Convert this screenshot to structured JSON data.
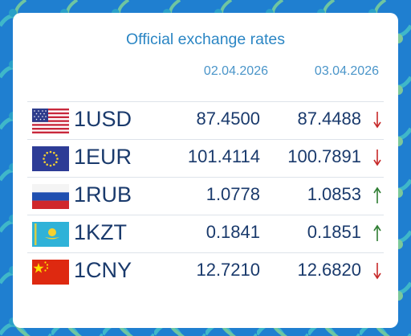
{
  "header": {
    "title": "Official exchange rates",
    "date_1": "02.04.2026",
    "date_2": "03.04.2026"
  },
  "colors": {
    "up": "#2e7d32",
    "down": "#c62828",
    "title": "#2b86c4",
    "text": "#1a3a6c"
  },
  "rates": [
    {
      "flag": "usa-flag-icon",
      "code": "1USD",
      "rate_1": "87.4500",
      "rate_2": "87.4488",
      "trend": "down"
    },
    {
      "flag": "eu-flag-icon",
      "code": "1EUR",
      "rate_1": "101.4114",
      "rate_2": "100.7891",
      "trend": "down"
    },
    {
      "flag": "russia-flag-icon",
      "code": "1RUB",
      "rate_1": "1.0778",
      "rate_2": "1.0853",
      "trend": "up"
    },
    {
      "flag": "kazakhstan-flag-icon",
      "code": "1KZT",
      "rate_1": "0.1841",
      "rate_2": "0.1851",
      "trend": "up"
    },
    {
      "flag": "china-flag-icon",
      "code": "1CNY",
      "rate_1": "12.7210",
      "rate_2": "12.6820",
      "trend": "down"
    }
  ]
}
